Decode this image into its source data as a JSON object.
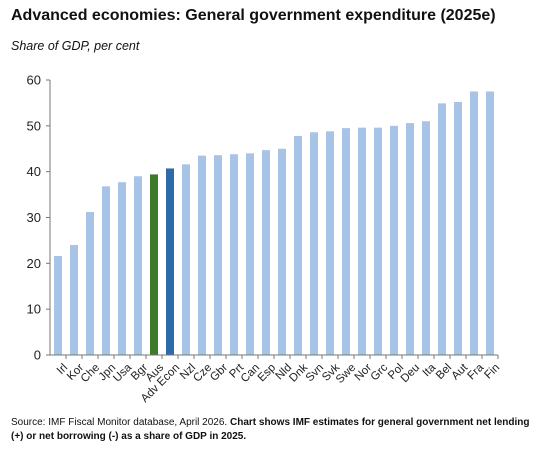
{
  "title": "Advanced economies: General government expenditure (2025e)",
  "subtitle": "Share of  GDP, per cent",
  "source_regular": "Source: IMF Fiscal Monitor database, April 2026. ",
  "source_bold": "Chart shows IMF estimates for general government net lending (+) or net borrowing (-) as a share of GDP in 2025.",
  "colors": {
    "default": "#a7c4e7",
    "australia": "#3e7a2a",
    "advanced_economies": "#2e6aa8",
    "axis": "#777777",
    "grid": "#d9d9d9"
  },
  "chart_data": {
    "type": "bar",
    "title": "Advanced economies: General government expenditure (2025e)",
    "ylabel": "",
    "xlabel": "",
    "ylim": [
      0,
      60
    ],
    "yticks": [
      0,
      10,
      20,
      30,
      40,
      50,
      60
    ],
    "grid": false,
    "categories": [
      "Irl",
      "Kor",
      "Che",
      "Jpn",
      "Usa",
      "Bgr",
      "Aus",
      "Adv Econ",
      "Nzl",
      "Cze",
      "Gbr",
      "Prt",
      "Can",
      "Esp",
      "Nld",
      "Dnk",
      "Svn",
      "Svk",
      "Swe",
      "Nor",
      "Grc",
      "Pol",
      "Deu",
      "Ita",
      "Bel",
      "Aut",
      "Fra",
      "Fin"
    ],
    "values": [
      21.6,
      24.0,
      31.2,
      36.8,
      37.7,
      39.0,
      39.4,
      40.7,
      41.6,
      43.5,
      43.6,
      43.8,
      44.0,
      44.7,
      45.0,
      47.8,
      48.6,
      48.8,
      49.5,
      49.6,
      49.6,
      50.0,
      50.6,
      51.0,
      54.9,
      55.2,
      57.5,
      57.5
    ],
    "highlights": {
      "Aus": "australia",
      "Adv Econ": "advanced_economies"
    }
  }
}
